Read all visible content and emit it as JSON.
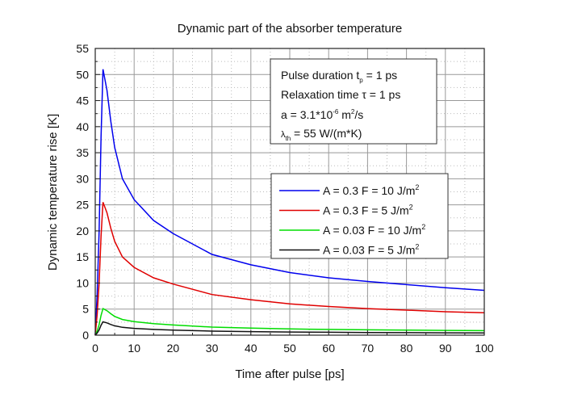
{
  "chart_data": {
    "type": "line",
    "title": "Dynamic part of the absorber temperature",
    "xlabel": "Time after pulse [ps]",
    "ylabel": "Dynamic temperature rise [K]",
    "xlim": [
      0,
      100
    ],
    "ylim": [
      0,
      55
    ],
    "xticks": [
      0,
      10,
      20,
      30,
      40,
      50,
      60,
      70,
      80,
      90,
      100
    ],
    "yticks": [
      0,
      5,
      10,
      15,
      20,
      25,
      30,
      35,
      40,
      45,
      50,
      55
    ],
    "grid": true,
    "legend_placement": "right",
    "x": [
      0,
      0.5,
      1,
      1.5,
      2,
      3,
      4,
      5,
      7,
      10,
      15,
      20,
      30,
      40,
      50,
      60,
      70,
      80,
      90,
      100
    ],
    "series": [
      {
        "name": "A = 0.3 F = 10 J/m²",
        "color": "#0000ee",
        "values": [
          0,
          8,
          20,
          38,
          51,
          47,
          41,
          36,
          30,
          26,
          22,
          19.5,
          15.5,
          13.5,
          12,
          11,
          10.3,
          9.7,
          9.1,
          8.6
        ]
      },
      {
        "name": "A = 0.3 F = 5 J/m²",
        "color": "#e00000",
        "values": [
          0,
          4,
          10,
          19,
          25.5,
          23.5,
          20.5,
          18,
          15,
          13,
          11,
          9.8,
          7.8,
          6.8,
          6,
          5.5,
          5.1,
          4.8,
          4.5,
          4.3
        ]
      },
      {
        "name": "A = 0.03 F = 10 J/m²",
        "color": "#00dd00",
        "values": [
          0,
          0.8,
          2,
          3.8,
          5.1,
          4.7,
          4.1,
          3.6,
          3,
          2.6,
          2.2,
          1.95,
          1.55,
          1.35,
          1.2,
          1.1,
          1.03,
          0.97,
          0.91,
          0.86
        ]
      },
      {
        "name": "A = 0.03 F = 5 J/m²",
        "color": "#111111",
        "values": [
          0,
          0.4,
          1,
          1.9,
          2.55,
          2.35,
          2.05,
          1.8,
          1.5,
          1.3,
          1.1,
          0.98,
          0.78,
          0.68,
          0.6,
          0.55,
          0.51,
          0.48,
          0.45,
          0.43
        ]
      }
    ],
    "annotation": {
      "lines": [
        "Pulse duration t",
        "p",
        " = 1 ps",
        "Relaxation time τ = 1 ps",
        "a = 3.1*10",
        "-6",
        " m",
        "2",
        "/s",
        "λ",
        "th",
        " = 55 W/(m*K)"
      ]
    }
  }
}
